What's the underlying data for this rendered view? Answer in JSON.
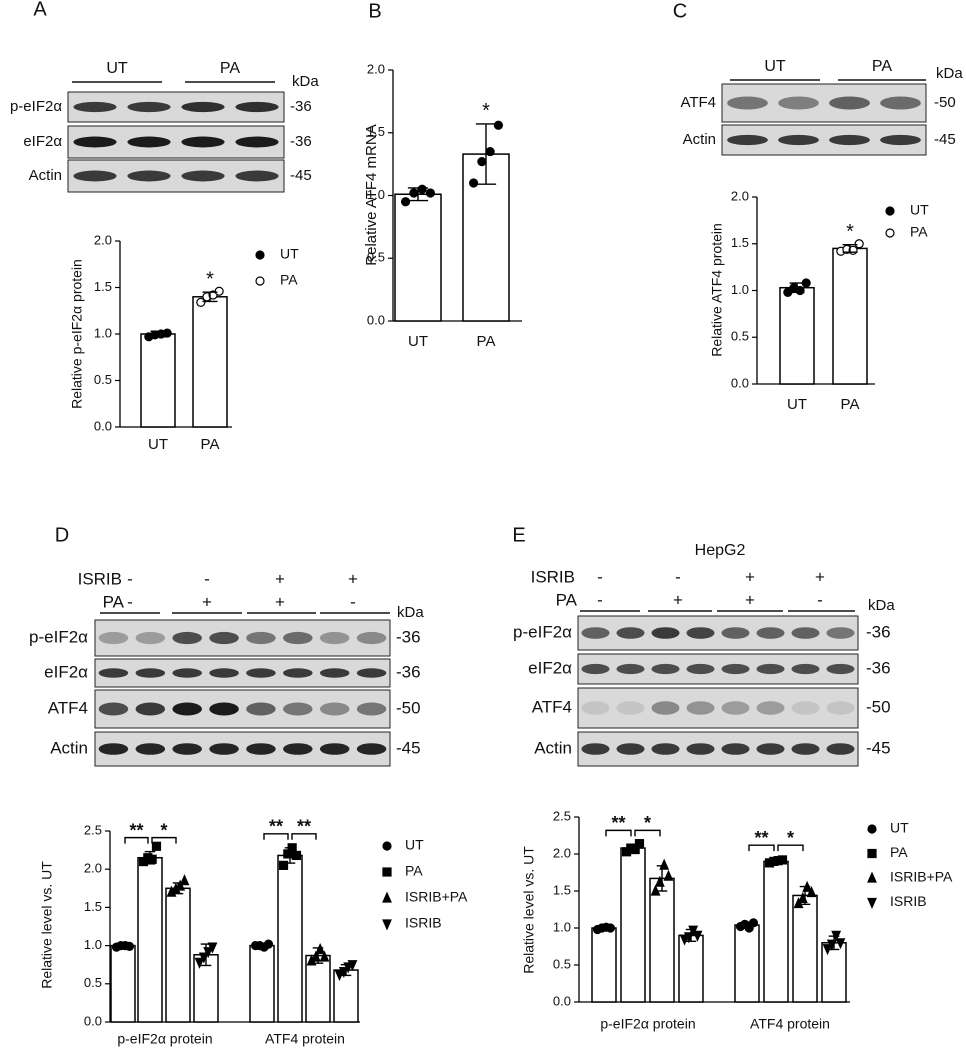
{
  "chart_data": [
    {
      "type": "bar",
      "panel": "A",
      "ylabel": "Relative p-eIF2α protein",
      "categories": [
        "UT",
        "PA"
      ],
      "values": [
        1.0,
        1.4
      ],
      "errors": [
        0.03,
        0.05
      ],
      "points": [
        [
          0.97,
          0.99,
          1.0,
          1.01
        ],
        [
          1.34,
          1.4,
          1.42,
          1.46
        ]
      ],
      "marker_colors": [
        "#000000",
        "#ffffff"
      ],
      "color": "#ffffff",
      "ylim": [
        0,
        2.0
      ],
      "yticks": [
        {
          "value": 0,
          "label": "0.0"
        },
        0.5,
        {
          "value": 1,
          "label": "1.0"
        },
        1.5,
        {
          "value": 2,
          "label": "2.0"
        }
      ],
      "legend": "right",
      "annotations": [
        "*"
      ]
    },
    {
      "type": "bar",
      "panel": "B",
      "ylabel": "Relative ATF4 mRNA",
      "categories": [
        "UT",
        "PA"
      ],
      "values": [
        1.01,
        1.33
      ],
      "errors": [
        0.05,
        0.24
      ],
      "points": [
        [
          0.95,
          1.02,
          1.05,
          1.02
        ],
        [
          1.1,
          1.27,
          1.35,
          1.56
        ]
      ],
      "marker_colors": [
        "#000000",
        "#000000"
      ],
      "color": "#ffffff",
      "ylim": [
        0,
        2.0
      ],
      "yticks": [
        {
          "value": 0,
          "label": "0.0"
        },
        0.5,
        {
          "value": 1,
          "label": "1.0"
        },
        1.5,
        {
          "value": 2,
          "label": "2.0"
        }
      ],
      "annotations": [
        "*"
      ]
    },
    {
      "type": "bar",
      "panel": "C",
      "ylabel": "Relative ATF4 protein",
      "categories": [
        "UT",
        "PA"
      ],
      "values": [
        1.03,
        1.45
      ],
      "errors": [
        0.05,
        0.04
      ],
      "points": [
        [
          0.98,
          1.03,
          1.0,
          1.08
        ],
        [
          1.42,
          1.44,
          1.43,
          1.5
        ]
      ],
      "marker_colors": [
        "#000000",
        "#ffffff"
      ],
      "color": "#ffffff",
      "ylim": [
        0,
        2.0
      ],
      "yticks": [
        {
          "value": 0,
          "label": "0.0"
        },
        0.5,
        {
          "value": 1,
          "label": "1.0"
        },
        1.5,
        {
          "value": 2,
          "label": "2.0"
        }
      ],
      "legend": "right",
      "annotations": [
        "*"
      ]
    },
    {
      "type": "grouped_bar",
      "panel": "D",
      "ylabel": "Relative level vs. UT",
      "categories": [
        "p-eIF2α protein",
        "ATF4 protein"
      ],
      "series": [
        {
          "name": "UT",
          "color": "#ffffff",
          "marker": "circle",
          "values": [
            1.0,
            1.0
          ],
          "errors": [
            0.02,
            0.02
          ],
          "points": [
            [
              0.98,
              1.0,
              1.0,
              0.99
            ],
            [
              1.0,
              1.0,
              0.98,
              1.02
            ]
          ]
        },
        {
          "name": "PA",
          "color": "#ffffff",
          "marker": "square",
          "values": [
            2.15,
            2.18
          ],
          "errors": [
            0.08,
            0.1
          ],
          "points": [
            [
              2.1,
              2.15,
              2.13,
              2.3
            ],
            [
              2.05,
              2.2,
              2.28,
              2.18
            ]
          ]
        },
        {
          "name": "ISRIB+PA",
          "color": "#ffffff",
          "marker": "triangle",
          "values": [
            1.75,
            0.87
          ],
          "errors": [
            0.07,
            0.1
          ],
          "points": [
            [
              1.7,
              1.74,
              1.78,
              1.85
            ],
            [
              0.8,
              0.85,
              0.95,
              0.85
            ]
          ]
        },
        {
          "name": "ISRIB",
          "color": "#ffffff",
          "marker": "down-triangle",
          "values": [
            0.88,
            0.68
          ],
          "errors": [
            0.14,
            0.07
          ],
          "points": [
            [
              0.78,
              0.85,
              0.92,
              0.98
            ],
            [
              0.62,
              0.66,
              0.72,
              0.75
            ]
          ]
        }
      ],
      "ylim": [
        0,
        2.5
      ],
      "yticks": [
        {
          "value": 0,
          "label": "0.0"
        },
        0.5,
        {
          "value": 1,
          "label": "1.0"
        },
        1.5,
        {
          "value": 2,
          "label": "2.0"
        },
        2.5
      ],
      "legend": "right",
      "annotations": [
        "**",
        "*",
        "**",
        "**"
      ]
    },
    {
      "type": "grouped_bar",
      "panel": "E",
      "title": "HepG2",
      "ylabel": "Relative level vs. UT",
      "categories": [
        "p-eIF2α protein",
        "ATF4 protein"
      ],
      "series": [
        {
          "name": "UT",
          "color": "#ffffff",
          "marker": "circle",
          "values": [
            1.0,
            1.04
          ],
          "errors": [
            0.03,
            0.04
          ],
          "points": [
            [
              0.98,
              1.0,
              1.01,
              1.0
            ],
            [
              1.02,
              1.05,
              1.0,
              1.07
            ]
          ]
        },
        {
          "name": "PA",
          "color": "#ffffff",
          "marker": "square",
          "values": [
            2.08,
            1.9
          ],
          "errors": [
            0.05,
            0.03
          ],
          "points": [
            [
              2.03,
              2.08,
              2.06,
              2.14
            ],
            [
              1.88,
              1.9,
              1.91,
              1.92
            ]
          ]
        },
        {
          "name": "ISRIB+PA",
          "color": "#ffffff",
          "marker": "triangle",
          "values": [
            1.67,
            1.44
          ],
          "errors": [
            0.17,
            0.12
          ],
          "points": [
            [
              1.5,
              1.62,
              1.85,
              1.7
            ],
            [
              1.33,
              1.4,
              1.55,
              1.48
            ]
          ]
        },
        {
          "name": "ISRIB",
          "color": "#ffffff",
          "marker": "down-triangle",
          "values": [
            0.9,
            0.8
          ],
          "errors": [
            0.08,
            0.09
          ],
          "points": [
            [
              0.85,
              0.88,
              0.97,
              0.9
            ],
            [
              0.72,
              0.78,
              0.9,
              0.8
            ]
          ]
        }
      ],
      "ylim": [
        0,
        2.5
      ],
      "yticks": [
        {
          "value": 0,
          "label": "0.0"
        },
        0.5,
        {
          "value": 1,
          "label": "1.0"
        },
        1.5,
        {
          "value": 2,
          "label": "2.0"
        },
        2.5
      ],
      "legend": "right",
      "annotations": [
        "**",
        "*",
        "**",
        "*"
      ]
    }
  ],
  "blots": {
    "A": {
      "groups": [
        "UT",
        "PA"
      ],
      "unit": "kDa",
      "rows": [
        {
          "name": "p-eIF2α",
          "kda": "-36"
        },
        {
          "name": "eIF2α",
          "kda": "-36"
        },
        {
          "name": "Actin",
          "kda": "-45"
        }
      ]
    },
    "C": {
      "groups": [
        "UT",
        "PA"
      ],
      "unit": "kDa",
      "rows": [
        {
          "name": "ATF4",
          "kda": "-50"
        },
        {
          "name": "Actin",
          "kda": "-45"
        }
      ]
    },
    "D": {
      "conditions": [
        {
          "name": "ISRIB",
          "signs": [
            "-",
            "-",
            "+",
            "+"
          ]
        },
        {
          "name": "PA",
          "signs": [
            "-",
            "+",
            "+",
            "-"
          ]
        }
      ],
      "unit": "kDa",
      "rows": [
        {
          "name": "p-eIF2α",
          "kda": "-36"
        },
        {
          "name": "eIF2α",
          "kda": "-36"
        },
        {
          "name": "ATF4",
          "kda": "-50"
        },
        {
          "name": "Actin",
          "kda": "-45"
        }
      ]
    },
    "E": {
      "conditions": [
        {
          "name": "ISRIB",
          "signs": [
            "-",
            "-",
            "+",
            "+"
          ]
        },
        {
          "name": "PA",
          "signs": [
            "-",
            "+",
            "+",
            "-"
          ]
        }
      ],
      "unit": "kDa",
      "rows": [
        {
          "name": "p-eIF2α",
          "kda": "-36"
        },
        {
          "name": "eIF2α",
          "kda": "-36"
        },
        {
          "name": "ATF4",
          "kda": "-50"
        },
        {
          "name": "Actin",
          "kda": "-45"
        }
      ]
    }
  }
}
